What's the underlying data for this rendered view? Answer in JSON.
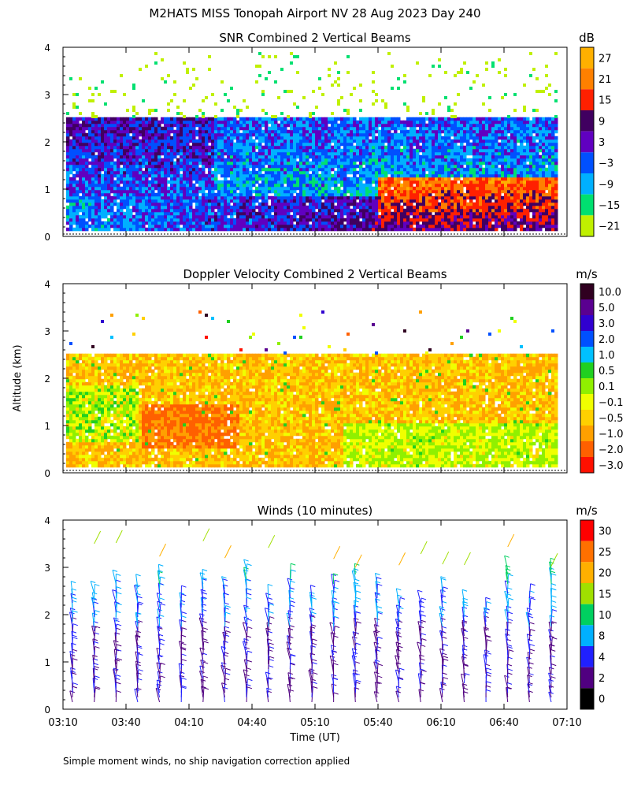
{
  "figure": {
    "title": "M2HATS MISS Tonopah Airport NV  28 Aug 2023 Day 240",
    "ylabel": "Altitude (km)",
    "xlabel": "Time (UT)",
    "footnote": "Simple moment winds, no ship navigation correction applied"
  },
  "chart_data": [
    {
      "type": "heatmap",
      "title": "SNR Combined 2 Vertical Beams",
      "colorbar_unit": "dB",
      "colorbar_labels": [
        "27",
        "21",
        "15",
        "9",
        "3",
        "−3",
        "−9",
        "−15",
        "−21"
      ],
      "colorbar_colors": [
        "#ffb000",
        "#ff8000",
        "#ff2000",
        "#400060",
        "#6000c0",
        "#0050ff",
        "#00b0ff",
        "#00e070",
        "#c0f000"
      ],
      "x_ticks": [
        "03:10",
        "03:40",
        "04:10",
        "04:40",
        "05:10",
        "05:40",
        "06:10",
        "06:40",
        "07:10"
      ],
      "y_ticks": [
        0,
        1,
        2,
        3,
        4
      ],
      "ylim": [
        0,
        4
      ],
      "xlim": [
        "03:10",
        "07:10"
      ],
      "data_top_km": 2.45
    },
    {
      "type": "heatmap",
      "title": "Doppler Velocity Combined 2 Vertical Beams",
      "colorbar_unit": "m/s",
      "colorbar_labels": [
        "10.0",
        "5.0",
        "3.0",
        "2.0",
        "1.0",
        "0.5",
        "0.1",
        "−0.1",
        "−0.5",
        "−1.0",
        "−2.0",
        "−3.0"
      ],
      "colorbar_colors": [
        "#300020",
        "#5a0090",
        "#3000d0",
        "#0050ff",
        "#00c0ff",
        "#20d020",
        "#90f000",
        "#f0ff00",
        "#ffd000",
        "#ffa000",
        "#ff6000",
        "#ff1000"
      ],
      "x_ticks": [
        "03:10",
        "03:40",
        "04:10",
        "04:40",
        "05:10",
        "05:40",
        "06:10",
        "06:40",
        "07:10"
      ],
      "y_ticks": [
        0,
        1,
        2,
        3,
        4
      ],
      "ylim": [
        0,
        4
      ],
      "xlim": [
        "03:10",
        "07:10"
      ],
      "data_top_km": 2.45
    },
    {
      "type": "scatter",
      "title": "Winds (10 minutes)",
      "colorbar_unit": "m/s",
      "colorbar_labels": [
        "30",
        "25",
        "20",
        "15",
        "10",
        "8",
        "4",
        "2",
        "0"
      ],
      "colorbar_colors": [
        "#ff0000",
        "#ff7000",
        "#ffb000",
        "#a0e000",
        "#00d060",
        "#00b0ff",
        "#2020ff",
        "#500080",
        "#000000"
      ],
      "x_ticks": [
        "03:10",
        "03:40",
        "04:10",
        "04:40",
        "05:10",
        "05:40",
        "06:10",
        "06:40",
        "07:10"
      ],
      "y_ticks": [
        0,
        1,
        2,
        3,
        4
      ],
      "ylim": [
        0,
        4
      ],
      "xlim": [
        "03:10",
        "07:10"
      ],
      "profiles": 23,
      "typical_speed_by_altitude": [
        {
          "alt_km": 0.5,
          "speed_ms": 4
        },
        {
          "alt_km": 1.5,
          "speed_ms": 7
        },
        {
          "alt_km": 2.5,
          "speed_ms": 12
        },
        {
          "alt_km": 3.3,
          "speed_ms": 20
        }
      ]
    }
  ]
}
